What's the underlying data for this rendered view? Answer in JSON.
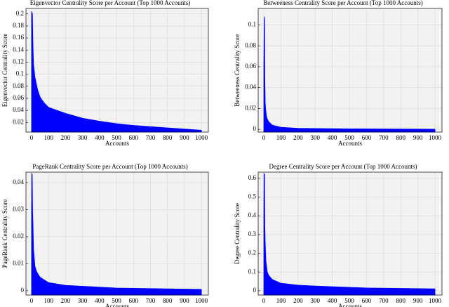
{
  "chart_data": [
    {
      "type": "area",
      "title": "Eigenvector Centrality Score per Account (Top 1000 Accounts)",
      "xlabel": "Accounts",
      "ylabel": "Eigenvector Centrality Score",
      "color": "#0000ff",
      "grid": true,
      "x": [
        0,
        1,
        5,
        8,
        12,
        20,
        35,
        50,
        75,
        100,
        150,
        200,
        300,
        400,
        500,
        600,
        700,
        800,
        900,
        1000
      ],
      "values": [
        0.2,
        0.204,
        0.2,
        0.15,
        0.115,
        0.095,
        0.075,
        0.062,
        0.052,
        0.045,
        0.04,
        0.035,
        0.027,
        0.022,
        0.018,
        0.015,
        0.013,
        0.011,
        0.009,
        0.007
      ],
      "xlim": [
        -33,
        1041
      ],
      "xticks": [
        0,
        100,
        200,
        300,
        400,
        500,
        600,
        700,
        800,
        900,
        1000
      ],
      "ylim": [
        0.004,
        0.209
      ],
      "yticks": [
        0.02,
        0.04,
        0.06,
        0.08,
        0.1,
        0.12,
        0.14,
        0.16,
        0.18,
        0.2
      ]
    },
    {
      "type": "area",
      "title": "Betweeness Centrality Score per Account (Top 1000 Accounts)",
      "xlabel": "Accounts",
      "ylabel": "Betweeness Centrality Score",
      "color": "#0000ff",
      "grid": true,
      "x": [
        0,
        2,
        4,
        6,
        8,
        10,
        15,
        20,
        30,
        50,
        100,
        200,
        500,
        1000
      ],
      "values": [
        0.06,
        0.108,
        0.105,
        0.05,
        0.026,
        0.02,
        0.013,
        0.01,
        0.007,
        0.004,
        0.002,
        0.001,
        0.0005,
        0.0002
      ],
      "xlim": [
        -33,
        1041
      ],
      "xticks": [
        0,
        100,
        200,
        300,
        400,
        500,
        600,
        700,
        800,
        900,
        1000
      ],
      "ylim": [
        -0.0026,
        0.1158
      ],
      "yticks": [
        0,
        0.02,
        0.04,
        0.06,
        0.08,
        0.1
      ]
    },
    {
      "type": "area",
      "title": "PageRank Centrality Score per Account (Top 1000 Accounts)",
      "xlabel": "Accounts",
      "ylabel": "PageRank Centrality Score",
      "color": "#0000ff",
      "grid": true,
      "x": [
        0,
        1,
        4,
        6,
        8,
        12,
        20,
        30,
        50,
        100,
        200,
        500,
        1000
      ],
      "values": [
        0.03,
        0.0435,
        0.043,
        0.03,
        0.025,
        0.015,
        0.009,
        0.007,
        0.005,
        0.003,
        0.002,
        0.001,
        0.0005
      ],
      "xlim": [
        -33,
        1041
      ],
      "xticks": [
        0,
        100,
        200,
        300,
        400,
        500,
        600,
        700,
        800,
        900,
        1000
      ],
      "ylim": [
        -0.0016,
        0.0439
      ],
      "yticks": [
        0,
        0.01,
        0.02,
        0.03,
        0.04
      ]
    },
    {
      "type": "area",
      "title": "Degree Centrality Score per Account (Top 1000 Accounts)",
      "xlabel": "Accounts",
      "ylabel": "Degree Centrality Score",
      "color": "#0000ff",
      "grid": true,
      "x": [
        0,
        1,
        4,
        6,
        8,
        12,
        20,
        30,
        50,
        100,
        200,
        300,
        600,
        1000
      ],
      "values": [
        0.4,
        0.625,
        0.62,
        0.35,
        0.26,
        0.16,
        0.1,
        0.08,
        0.06,
        0.04,
        0.03,
        0.025,
        0.015,
        0.01
      ],
      "xlim": [
        -33,
        1041
      ],
      "xticks": [
        0,
        100,
        200,
        300,
        400,
        500,
        600,
        700,
        800,
        900,
        1000
      ],
      "ylim": [
        -0.023,
        0.633
      ],
      "yticks": [
        0,
        0.1,
        0.2,
        0.3,
        0.4,
        0.5,
        0.6
      ]
    }
  ]
}
